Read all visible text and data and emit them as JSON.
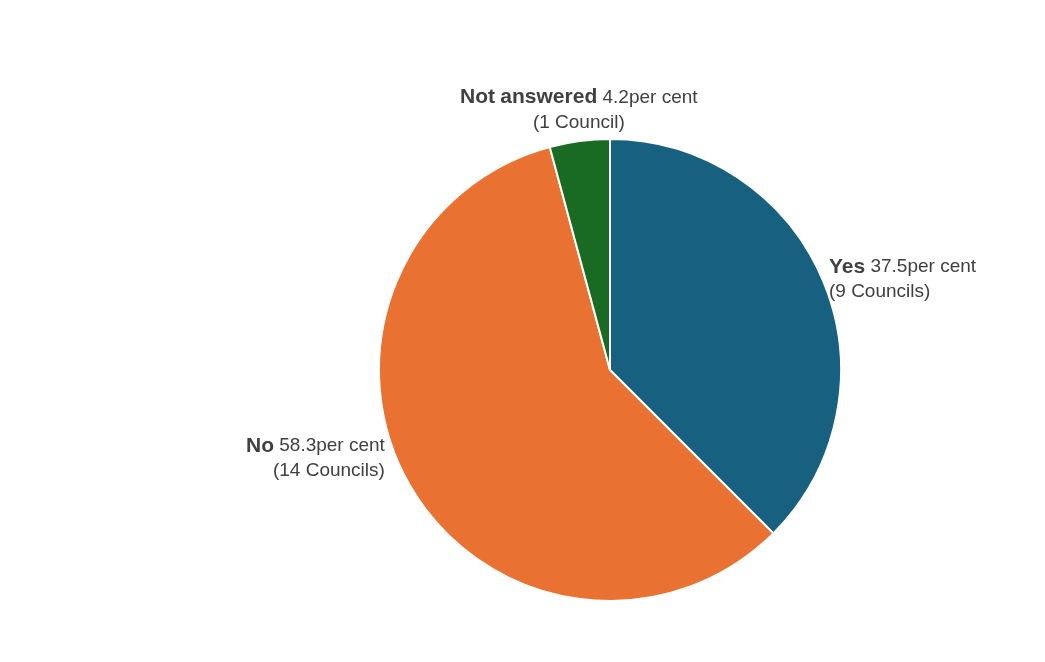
{
  "chart_data": {
    "type": "pie",
    "categories": [
      "Yes",
      "No",
      "Not answered"
    ],
    "values": [
      37.5,
      58.3,
      4.2
    ],
    "colors": [
      "#17607f",
      "#e97132",
      "#196b24"
    ],
    "value_labels": [
      "37.5per cent\n(9 Councils)",
      "58.3per cent\n(14 Councils)",
      "4.2per cent\n(1 Council)"
    ],
    "legend": false
  }
}
